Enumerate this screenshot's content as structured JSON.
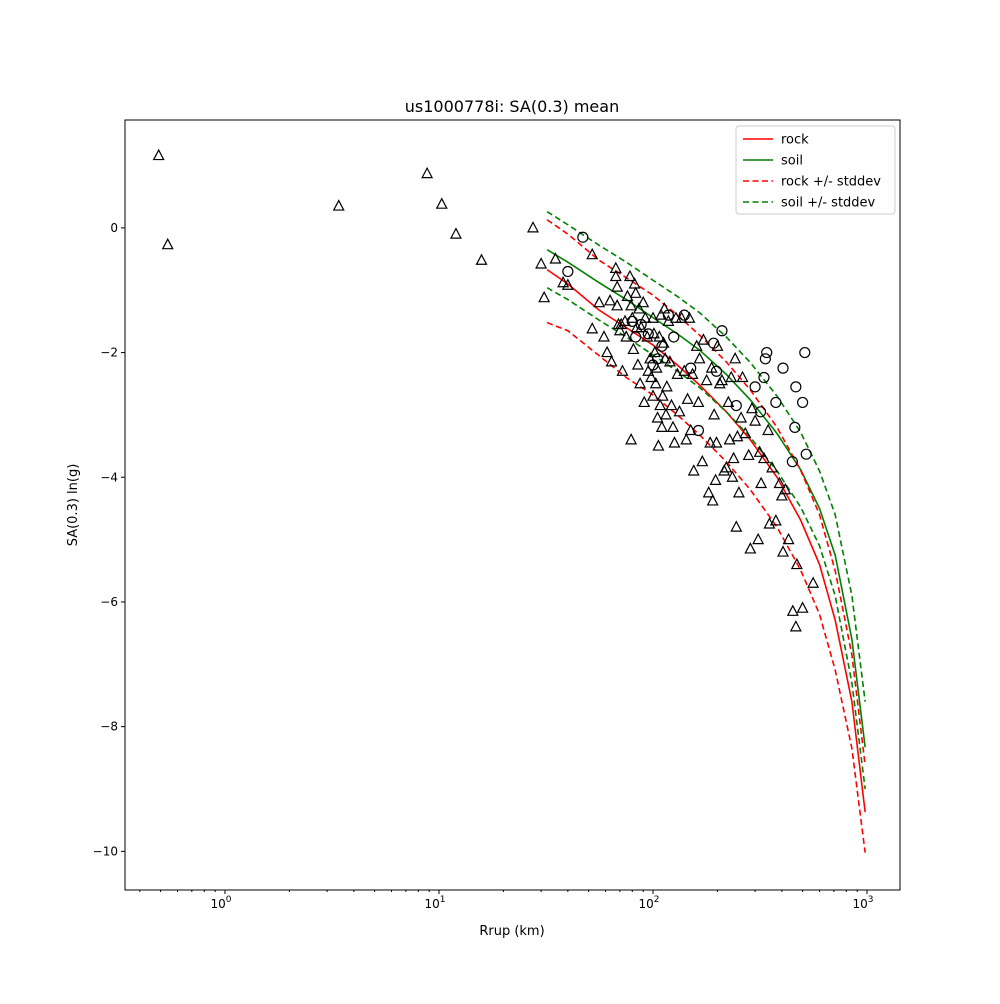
{
  "chart_data": {
    "type": "scatter",
    "title": "us1000778i: SA(0.3) mean",
    "xlabel": "Rrup (km)",
    "ylabel": "SA(0.3) ln(g)",
    "xscale": "log",
    "xlim": [
      0.341,
      1426
    ],
    "ylim": [
      -10.62,
      1.73
    ],
    "xticks": [
      {
        "base": "10",
        "exp": "0",
        "value": 1
      },
      {
        "base": "10",
        "exp": "1",
        "value": 10
      },
      {
        "base": "10",
        "exp": "2",
        "value": 100
      },
      {
        "base": "10",
        "exp": "3",
        "value": 1000
      }
    ],
    "yticks": [
      {
        "label": "0",
        "value": 0
      },
      {
        "label": "−2",
        "value": -2
      },
      {
        "label": "−4",
        "value": -4
      },
      {
        "label": "−6",
        "value": -6
      },
      {
        "label": "−8",
        "value": -8
      },
      {
        "label": "−10",
        "value": -10
      }
    ],
    "legend_position": "top-right",
    "line_x": [
      32,
      40,
      56,
      75,
      100,
      130,
      165,
      220,
      285,
      380,
      490,
      600,
      710,
      850,
      980
    ],
    "series": [
      {
        "name": "rock",
        "color": "#ff0000",
        "dash": false,
        "values": [
          -0.67,
          -0.9,
          -1.32,
          -1.6,
          -1.88,
          -2.2,
          -2.52,
          -2.95,
          -3.4,
          -4.0,
          -4.69,
          -5.4,
          -6.29,
          -7.6,
          -9.37
        ]
      },
      {
        "name": "soil",
        "color": "#008000",
        "dash": false,
        "values": [
          -0.35,
          -0.55,
          -0.88,
          -1.15,
          -1.44,
          -1.7,
          -1.96,
          -2.35,
          -2.76,
          -3.3,
          -3.88,
          -4.5,
          -5.25,
          -6.6,
          -8.33
        ]
      },
      {
        "name": "rock +/- stddev",
        "color": "#ff0000",
        "dash": true,
        "values": [
          0.13,
          -0.1,
          -0.52,
          -0.8,
          -1.08,
          -1.4,
          -1.72,
          -2.15,
          -2.6,
          -3.2,
          -3.89,
          -4.6,
          -5.5,
          -6.85,
          -8.62
        ],
        "values_lower": [
          -1.52,
          -1.65,
          -2.05,
          -2.4,
          -2.68,
          -3.0,
          -3.32,
          -3.75,
          -4.2,
          -4.8,
          -5.49,
          -6.2,
          -7.09,
          -8.35,
          -10.02
        ]
      },
      {
        "name": "soil +/- stddev",
        "color": "#008000",
        "dash": true,
        "values": [
          0.26,
          0.05,
          -0.28,
          -0.55,
          -0.84,
          -1.1,
          -1.36,
          -1.75,
          -2.16,
          -2.7,
          -3.28,
          -3.9,
          -4.6,
          -5.9,
          -7.6
        ],
        "values_lower": [
          -0.96,
          -1.15,
          -1.48,
          -1.75,
          -2.04,
          -2.3,
          -2.56,
          -2.95,
          -3.36,
          -3.9,
          -4.48,
          -5.1,
          -5.9,
          -7.3,
          -9.0
        ]
      }
    ],
    "points_triangle": [
      [
        0.49,
        1.16
      ],
      [
        0.54,
        -0.27
      ],
      [
        3.4,
        0.35
      ],
      [
        8.8,
        0.87
      ],
      [
        10.3,
        0.38
      ],
      [
        12,
        -0.1
      ],
      [
        15.8,
        -0.52
      ],
      [
        27.5,
        0
      ],
      [
        30,
        -0.58
      ],
      [
        31,
        -1.12
      ],
      [
        35,
        -0.5
      ],
      [
        38,
        -0.88
      ],
      [
        40,
        -0.92
      ],
      [
        52,
        -0.43
      ],
      [
        52,
        -1.62
      ],
      [
        56,
        -1.2
      ],
      [
        59,
        -1.75
      ],
      [
        61,
        -2.0
      ],
      [
        63,
        -1.17
      ],
      [
        64,
        -2.15
      ],
      [
        67,
        -0.65
      ],
      [
        67,
        -0.78
      ],
      [
        68,
        -0.95
      ],
      [
        68,
        -1.25
      ],
      [
        69,
        -1.55
      ],
      [
        70,
        -1.65
      ],
      [
        71,
        -1.55
      ],
      [
        72,
        -2.3
      ],
      [
        74,
        -1.5
      ],
      [
        75,
        -1.75
      ],
      [
        76,
        -1.1
      ],
      [
        78,
        -0.78
      ],
      [
        79,
        -1.25
      ],
      [
        79,
        -3.4
      ],
      [
        80,
        -1.45
      ],
      [
        81,
        -1.95
      ],
      [
        82,
        -0.9
      ],
      [
        83,
        -1.05
      ],
      [
        84,
        -1.6
      ],
      [
        85,
        -2.2
      ],
      [
        86,
        -1.3
      ],
      [
        87,
        -2.5
      ],
      [
        88,
        -1.6
      ],
      [
        90,
        -1.2
      ],
      [
        91,
        -2.8
      ],
      [
        92,
        -1.45
      ],
      [
        94,
        -1.75
      ],
      [
        95,
        -2.3
      ],
      [
        97,
        -2.1
      ],
      [
        98,
        -2.4
      ],
      [
        100,
        -1.45
      ],
      [
        100,
        -2.7
      ],
      [
        101,
        -1.7
      ],
      [
        102,
        -2.0
      ],
      [
        103,
        -2.5
      ],
      [
        104,
        -2.25
      ],
      [
        105,
        -3.05
      ],
      [
        106,
        -3.5
      ],
      [
        107,
        -1.75
      ],
      [
        108,
        -2.85
      ],
      [
        109,
        -1.4
      ],
      [
        110,
        -3.2
      ],
      [
        111,
        -2.7
      ],
      [
        112,
        -1.85
      ],
      [
        113,
        -1.3
      ],
      [
        114,
        -2.1
      ],
      [
        115,
        -3.0
      ],
      [
        116,
        -2.55
      ],
      [
        118,
        -1.5
      ],
      [
        120,
        -2.15
      ],
      [
        122,
        -2.85
      ],
      [
        124,
        -3.2
      ],
      [
        126,
        -3.45
      ],
      [
        128,
        -1.45
      ],
      [
        130,
        -2.35
      ],
      [
        133,
        -2.95
      ],
      [
        136,
        -1.45
      ],
      [
        140,
        -2.3
      ],
      [
        143,
        -3.4
      ],
      [
        145,
        -2.75
      ],
      [
        148,
        -1.45
      ],
      [
        150,
        -3.25
      ],
      [
        153,
        -2.35
      ],
      [
        155,
        -3.9
      ],
      [
        160,
        -1.9
      ],
      [
        163,
        -2.8
      ],
      [
        165,
        -2.1
      ],
      [
        170,
        -3.75
      ],
      [
        172,
        -1.8
      ],
      [
        178,
        -2.45
      ],
      [
        182,
        -4.25
      ],
      [
        185,
        -3.45
      ],
      [
        188,
        -2.25
      ],
      [
        190,
        -4.38
      ],
      [
        193,
        -3.0
      ],
      [
        196,
        -4.05
      ],
      [
        198,
        -3.45
      ],
      [
        200,
        -1.9
      ],
      [
        205,
        -2.5
      ],
      [
        210,
        -2.45
      ],
      [
        215,
        -3.9
      ],
      [
        220,
        -3.85
      ],
      [
        225,
        -2.8
      ],
      [
        228,
        -3.4
      ],
      [
        232,
        -2.4
      ],
      [
        235,
        -4.0
      ],
      [
        238,
        -3.7
      ],
      [
        242,
        -2.1
      ],
      [
        245,
        -4.8
      ],
      [
        248,
        -3.35
      ],
      [
        252,
        -4.25
      ],
      [
        258,
        -3.05
      ],
      [
        262,
        -2.4
      ],
      [
        270,
        -3.3
      ],
      [
        280,
        -3.65
      ],
      [
        285,
        -5.15
      ],
      [
        290,
        -2.9
      ],
      [
        300,
        -3.1
      ],
      [
        310,
        -5.0
      ],
      [
        315,
        -3.6
      ],
      [
        320,
        -4.1
      ],
      [
        330,
        -3.7
      ],
      [
        345,
        -3.25
      ],
      [
        350,
        -4.75
      ],
      [
        360,
        -3.85
      ],
      [
        375,
        -4.7
      ],
      [
        390,
        -4.1
      ],
      [
        400,
        -4.3
      ],
      [
        405,
        -5.2
      ],
      [
        415,
        -4.2
      ],
      [
        430,
        -5.0
      ],
      [
        450,
        -6.15
      ],
      [
        465,
        -6.4
      ],
      [
        470,
        -5.4
      ],
      [
        500,
        -6.1
      ],
      [
        560,
        -5.7
      ]
    ],
    "points_circle": [
      [
        40,
        -0.7
      ],
      [
        47,
        -0.15
      ],
      [
        80,
        -1.5
      ],
      [
        83,
        -1.75
      ],
      [
        88,
        -1.55
      ],
      [
        95,
        -1.7
      ],
      [
        100,
        -2.2
      ],
      [
        105,
        -2.1
      ],
      [
        110,
        -1.9
      ],
      [
        118,
        -1.4
      ],
      [
        125,
        -1.75
      ],
      [
        140,
        -1.4
      ],
      [
        150,
        -2.25
      ],
      [
        163,
        -3.25
      ],
      [
        192,
        -1.85
      ],
      [
        198,
        -2.3
      ],
      [
        210,
        -1.65
      ],
      [
        245,
        -2.85
      ],
      [
        300,
        -2.55
      ],
      [
        318,
        -2.95
      ],
      [
        330,
        -2.4
      ],
      [
        335,
        -2.1
      ],
      [
        340,
        -2.0
      ],
      [
        375,
        -2.8
      ],
      [
        405,
        -2.25
      ],
      [
        448,
        -3.75
      ],
      [
        460,
        -3.2
      ],
      [
        465,
        -2.55
      ],
      [
        500,
        -2.8
      ],
      [
        512,
        -2.0
      ],
      [
        520,
        -3.63
      ]
    ]
  }
}
